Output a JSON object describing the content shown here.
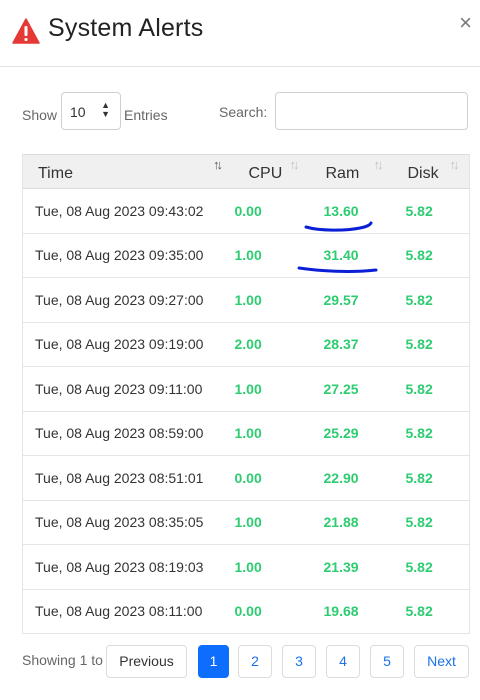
{
  "header": {
    "title": "System Alerts",
    "close_glyph": "×"
  },
  "controls": {
    "show_label": "Show",
    "entries_value": "10",
    "entries_label": "Entries",
    "search_label": "Search:",
    "search_value": ""
  },
  "table": {
    "columns": [
      "Time",
      "CPU",
      "Ram",
      "Disk"
    ],
    "rows": [
      {
        "time": "Tue, 08 Aug 2023 09:43:02",
        "cpu": "0.00",
        "ram": "13.60",
        "disk": "5.82"
      },
      {
        "time": "Tue, 08 Aug 2023 09:35:00",
        "cpu": "1.00",
        "ram": "31.40",
        "disk": "5.82"
      },
      {
        "time": "Tue, 08 Aug 2023 09:27:00",
        "cpu": "1.00",
        "ram": "29.57",
        "disk": "5.82"
      },
      {
        "time": "Tue, 08 Aug 2023 09:19:00",
        "cpu": "2.00",
        "ram": "28.37",
        "disk": "5.82"
      },
      {
        "time": "Tue, 08 Aug 2023 09:11:00",
        "cpu": "1.00",
        "ram": "27.25",
        "disk": "5.82"
      },
      {
        "time": "Tue, 08 Aug 2023 08:59:00",
        "cpu": "1.00",
        "ram": "25.29",
        "disk": "5.82"
      },
      {
        "time": "Tue, 08 Aug 2023 08:51:01",
        "cpu": "0.00",
        "ram": "22.90",
        "disk": "5.82"
      },
      {
        "time": "Tue, 08 Aug 2023 08:35:05",
        "cpu": "1.00",
        "ram": "21.88",
        "disk": "5.82"
      },
      {
        "time": "Tue, 08 Aug 2023 08:19:03",
        "cpu": "1.00",
        "ram": "21.39",
        "disk": "5.82"
      },
      {
        "time": "Tue, 08 Aug 2023 08:11:00",
        "cpu": "0.00",
        "ram": "19.68",
        "disk": "5.82"
      }
    ]
  },
  "footer": {
    "showing_text": "Showing 1 to",
    "prev_label": "Previous",
    "pages": [
      "1",
      "2",
      "3",
      "4",
      "5"
    ],
    "next_label": "Next",
    "active_page": "1"
  },
  "colors": {
    "value_green": "#2ecc71",
    "active_page": "#0d6efd",
    "alert_red": "#e53935",
    "annotation_blue": "#0a1fd6"
  },
  "icons": {
    "alert": "warning-triangle-icon",
    "sort": "sort-arrows-icon",
    "select_caret": "updown-caret-icon"
  }
}
